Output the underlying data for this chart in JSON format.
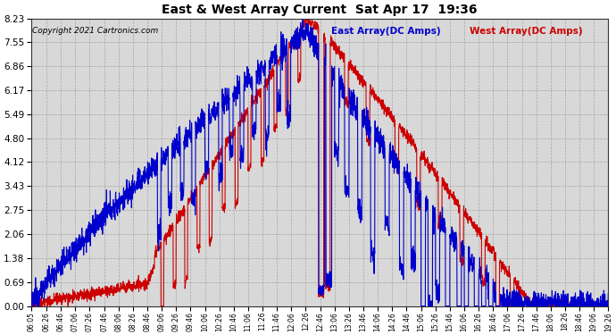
{
  "title": "East & West Array Current  Sat Apr 17  19:36",
  "copyright": "Copyright 2021 Cartronics.com",
  "legend_east": "East Array(DC Amps)",
  "legend_west": "West Array(DC Amps)",
  "east_color": "#0000CC",
  "west_color": "#CC0000",
  "background_color": "#FFFFFF",
  "grid_color": "#999999",
  "plot_bg_color": "#D8D8D8",
  "yticks": [
    0.0,
    0.69,
    1.38,
    2.06,
    2.75,
    3.43,
    4.12,
    4.8,
    5.49,
    6.17,
    6.86,
    7.55,
    8.23
  ],
  "ymax": 8.23,
  "ymin": 0.0,
  "xtick_labels": [
    "06:05",
    "06:26",
    "06:46",
    "07:06",
    "07:26",
    "07:46",
    "08:06",
    "08:26",
    "08:46",
    "09:06",
    "09:26",
    "09:46",
    "10:06",
    "10:26",
    "10:46",
    "11:06",
    "11:26",
    "11:46",
    "12:06",
    "12:26",
    "12:46",
    "13:06",
    "13:26",
    "13:46",
    "14:06",
    "14:26",
    "14:46",
    "15:06",
    "15:26",
    "15:46",
    "16:06",
    "16:26",
    "16:46",
    "17:06",
    "17:26",
    "17:46",
    "18:06",
    "18:26",
    "18:46",
    "19:06",
    "19:26"
  ]
}
